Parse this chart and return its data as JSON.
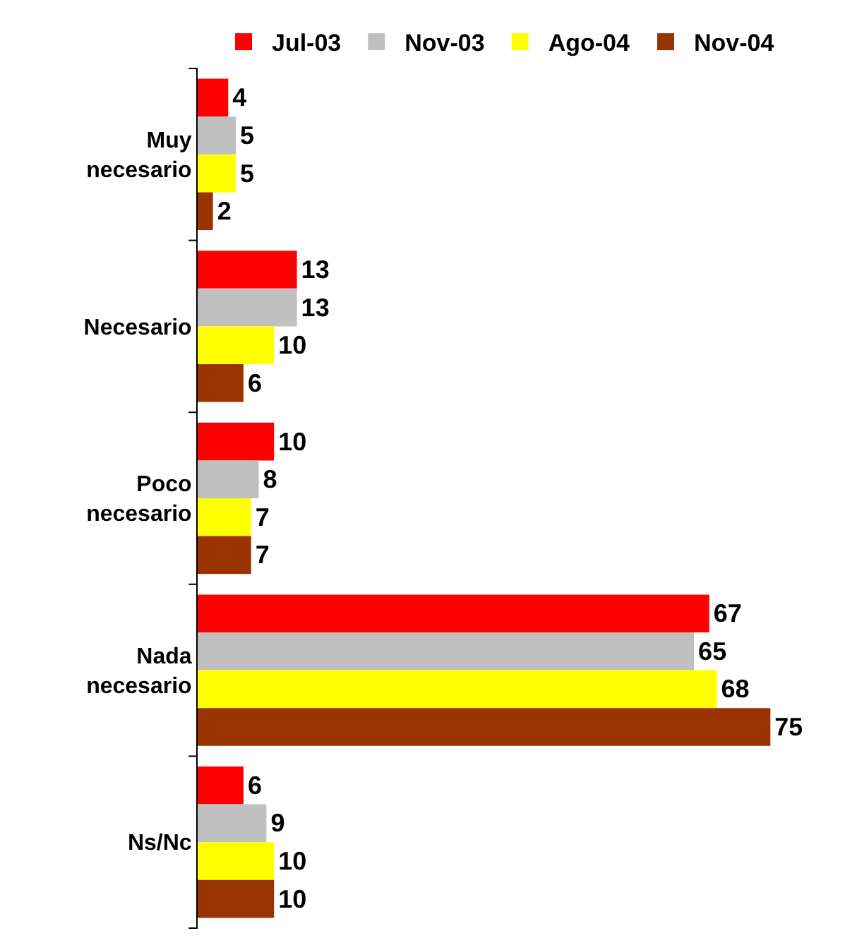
{
  "chart_data": {
    "type": "bar",
    "orientation": "horizontal",
    "categories": [
      "Muy necesario",
      "Necesario",
      "Poco necesario",
      "Nada necesario",
      "Ns/Nc"
    ],
    "series": [
      {
        "name": "Jul-03",
        "color": "#ff0000",
        "values": [
          4,
          13,
          10,
          67,
          6
        ]
      },
      {
        "name": "Nov-03",
        "color": "#c0c0c0",
        "values": [
          5,
          13,
          8,
          65,
          9
        ]
      },
      {
        "name": "Ago-04",
        "color": "#ffff00",
        "values": [
          5,
          10,
          7,
          68,
          10
        ]
      },
      {
        "name": "Nov-04",
        "color": "#993300",
        "values": [
          2,
          6,
          7,
          75,
          10
        ]
      }
    ],
    "data_labels": true,
    "legend": "top"
  }
}
